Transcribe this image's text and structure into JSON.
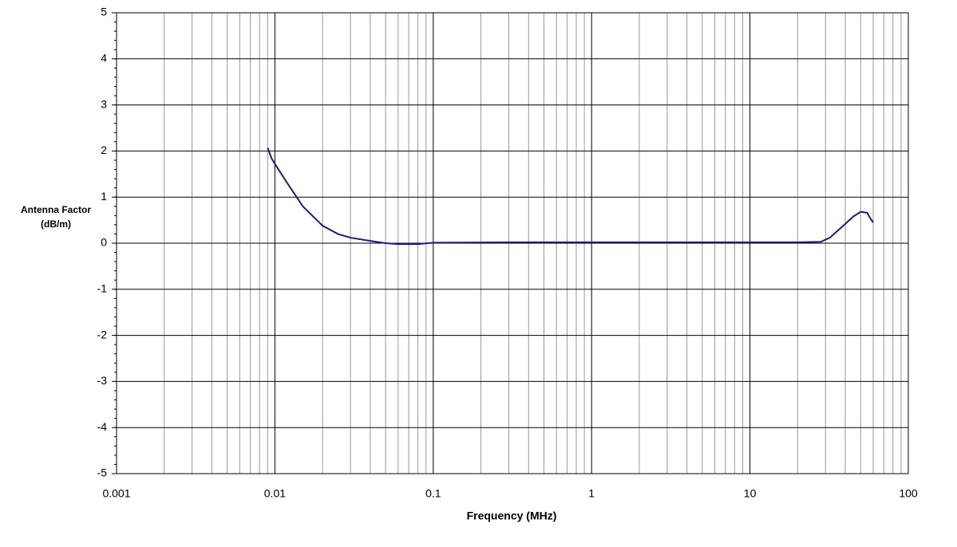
{
  "chart_data": {
    "type": "line",
    "x_label": "Frequency (MHz)",
    "y_label": "Antenna Factor (dB/m)",
    "x_log": true,
    "grid": true,
    "xlim": [
      0.001,
      100
    ],
    "xticks": [
      0.001,
      0.01,
      0.1,
      1,
      10,
      100
    ],
    "ylim": [
      -5,
      5
    ],
    "yticks": [
      -5,
      -4,
      -3,
      -2,
      -1,
      0,
      1,
      2,
      3,
      4,
      5
    ],
    "series": [
      {
        "name": "Antenna Factor",
        "color": "#1a1a80",
        "x": [
          0.009,
          0.0095,
          0.01,
          0.012,
          0.015,
          0.02,
          0.025,
          0.03,
          0.04,
          0.05,
          0.06,
          0.08,
          0.1,
          0.3,
          1,
          3,
          10,
          20,
          28,
          32,
          38,
          45,
          50,
          55,
          58,
          60
        ],
        "values": [
          2.07,
          1.85,
          1.72,
          1.3,
          0.8,
          0.38,
          0.2,
          0.12,
          0.05,
          0.0,
          -0.02,
          -0.02,
          0.01,
          0.02,
          0.02,
          0.02,
          0.02,
          0.02,
          0.03,
          0.12,
          0.35,
          0.58,
          0.68,
          0.66,
          0.52,
          0.45
        ]
      }
    ]
  }
}
